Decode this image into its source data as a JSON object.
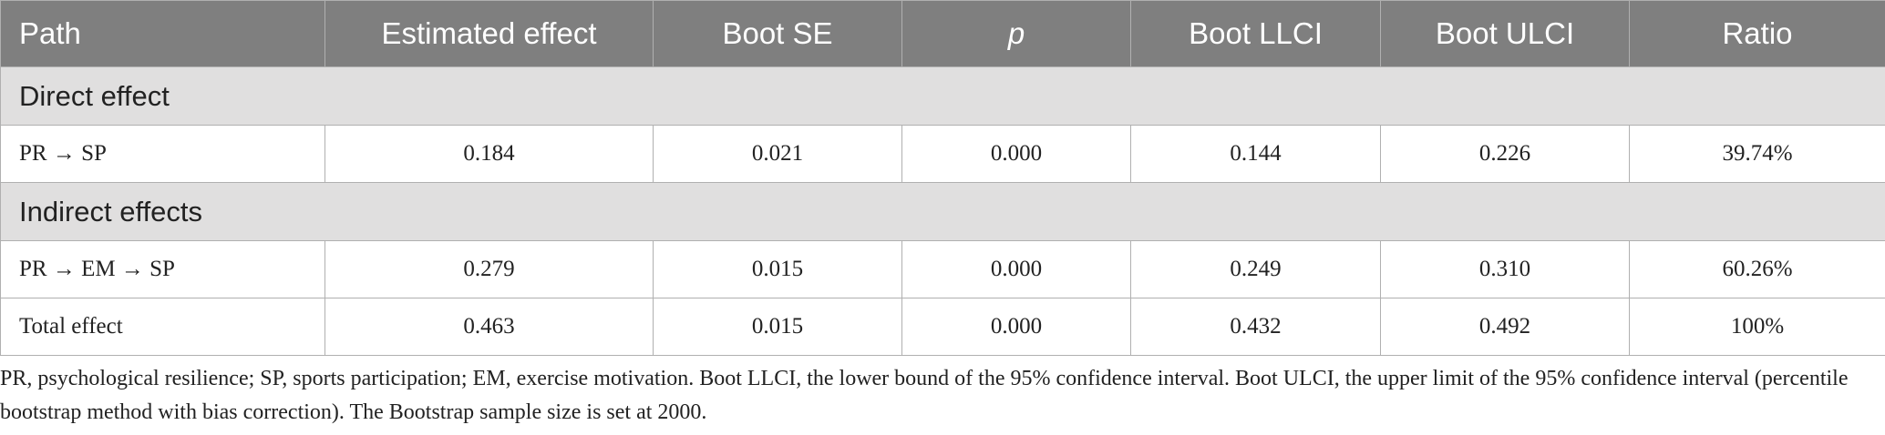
{
  "table": {
    "columns": [
      "Path",
      "Estimated effect",
      "Boot SE",
      "p",
      "Boot LLCI",
      "Boot ULCI",
      "Ratio"
    ],
    "rows": [
      [
        "Direct effect"
      ],
      [
        "PR → SP",
        "0.184",
        "0.021",
        "0.000",
        "0.144",
        "0.226",
        "39.74%"
      ],
      [
        "Indirect effects"
      ],
      [
        "PR → EM → SP",
        "0.279",
        "0.015",
        "0.000",
        "0.249",
        "0.310",
        "60.26%"
      ],
      [
        "Total effect",
        "0.463",
        "0.015",
        "0.000",
        "0.432",
        "0.492",
        "100%"
      ]
    ]
  },
  "footnote": "PR, psychological resilience; SP, sports participation; EM, exercise motivation. Boot LLCI, the lower bound of the 95% confidence interval. Boot ULCI, the upper limit of the 95% confidence interval (percentile bootstrap method with bias correction). The Bootstrap sample size is set at 2000."
}
